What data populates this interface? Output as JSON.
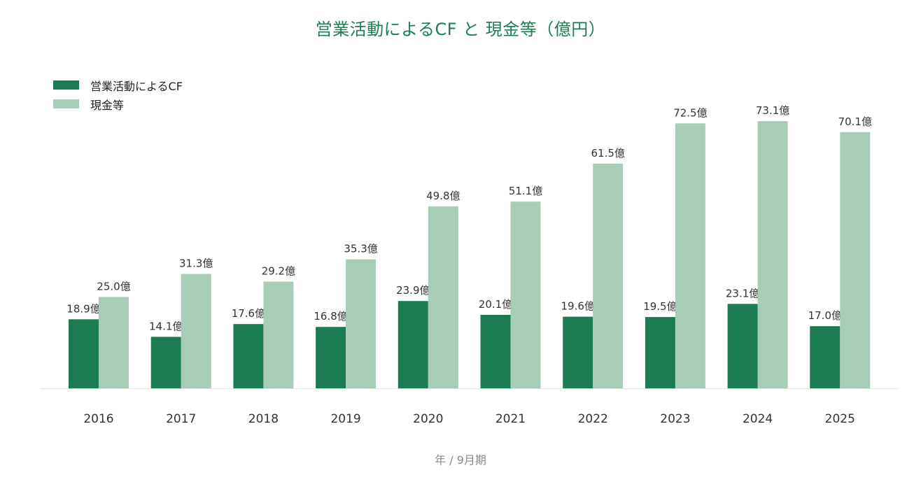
{
  "chart_data": {
    "type": "bar",
    "title": "営業活動によるCF と 現金等（億円）",
    "xlabel": "年 / 9月期",
    "ylabel": "",
    "categories": [
      "2016",
      "2017",
      "2018",
      "2019",
      "2020",
      "2021",
      "2022",
      "2023",
      "2024",
      "2025"
    ],
    "series": [
      {
        "name": "営業活動によるCF",
        "color": "#1b7c53",
        "values": [
          18.9,
          14.1,
          17.6,
          16.8,
          23.9,
          20.1,
          19.6,
          19.5,
          23.1,
          17.0
        ]
      },
      {
        "name": "現金等",
        "color": "#a8cdb7",
        "values": [
          25.0,
          31.3,
          29.2,
          35.3,
          49.8,
          51.1,
          61.5,
          72.5,
          73.1,
          70.1
        ]
      }
    ],
    "label_suffix": "億",
    "ylim": [
      0,
      75
    ],
    "grid": false,
    "legend_position": "top-left"
  }
}
